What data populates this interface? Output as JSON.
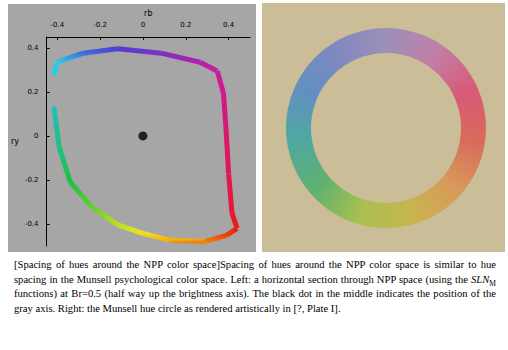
{
  "chart_data": {
    "type": "line",
    "xlabel": "rb",
    "ylabel": "ry",
    "xlim": [
      -0.45,
      0.5
    ],
    "ylim": [
      -0.5,
      0.45
    ],
    "xticks": [
      -0.4,
      -0.2,
      0,
      0.2,
      0.4
    ],
    "yticks": [
      -0.4,
      -0.2,
      0,
      0.2,
      0.4
    ],
    "grid": false,
    "series": [
      {
        "type": "line",
        "x": [
          -0.4,
          -0.279,
          -0.117,
          0.085,
          0.267,
          0.347,
          0.376,
          0.388,
          0.4,
          0.416,
          0.44,
          0.388,
          0.287,
          0.125,
          0.004,
          -0.117,
          -0.238,
          -0.339,
          -0.392,
          -0.416,
          -0.416,
          -0.4
        ],
        "values": [
          0.335,
          0.376,
          0.396,
          0.376,
          0.335,
          0.295,
          0.194,
          0.032,
          -0.17,
          -0.352,
          -0.42,
          -0.453,
          -0.48,
          -0.473,
          -0.444,
          -0.404,
          -0.323,
          -0.21,
          -0.048,
          0.133,
          0.275,
          0.335
        ],
        "colors": [
          "#30c8e8",
          "#3a70e0",
          "#5040d0",
          "#8030c0",
          "#b020b0",
          "#c820a0",
          "#d01890",
          "#d81870",
          "#e01850",
          "#e81830",
          "#e82010",
          "#f04010",
          "#f08010",
          "#f0b010",
          "#f0e020",
          "#c0e020",
          "#60d030",
          "#20c040",
          "#20c080",
          "#20c0c0",
          "#20d0e0",
          "#30c8e8"
        ]
      },
      {
        "type": "scatter",
        "marker": "circle",
        "color": "#000000",
        "x": [
          0
        ],
        "values": [
          0
        ]
      }
    ]
  },
  "hue_circle": {
    "colors": [
      "#9c90b8",
      "#c080a8",
      "#d85a78",
      "#d86a5a",
      "#d89a5a",
      "#c8b450",
      "#a8c050",
      "#60b070",
      "#50a8a0",
      "#6090c0",
      "#8088c0",
      "#9c90b8"
    ]
  },
  "caption": [
    {
      "text": "[Spacing of hues around the NPP color space]Spacing of hues around the NPP color space is similar to hue spacing in the Munsell psychological color space. Left: a horizontal section through NPP space (using the "
    },
    {
      "text": "SLN",
      "style": "italic"
    },
    {
      "text": "M",
      "style": "sub"
    },
    {
      "text": " functions) at Br=0.5 (half way up the brightness axis). The black dot in the middle indicates the position of the gray axis. Right: the Munsell hue circle as rendered artistically in [?, Plate I]."
    }
  ]
}
